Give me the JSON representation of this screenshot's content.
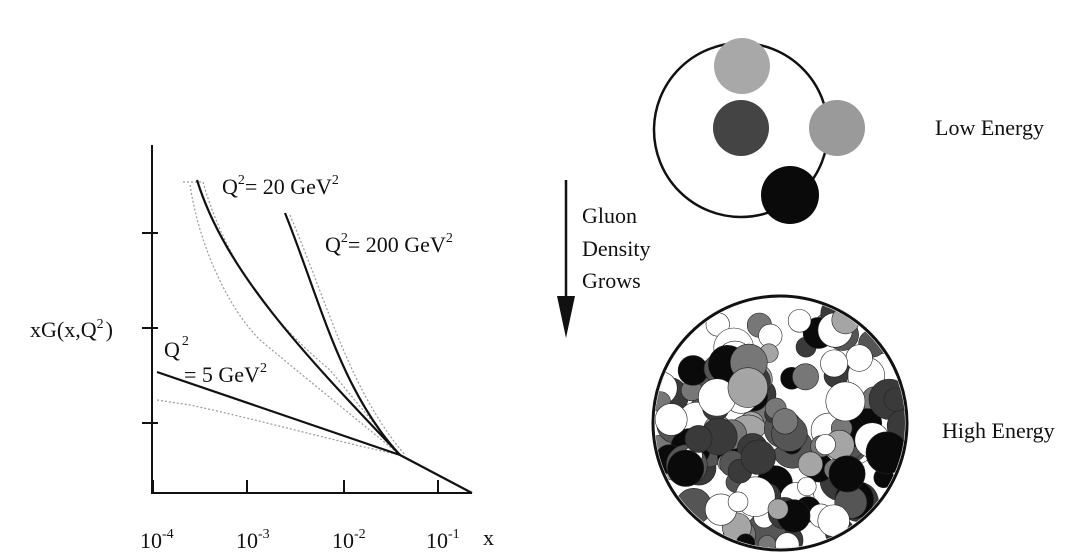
{
  "plot": {
    "y_axis_label": [
      "xG(x,Q",
      "2",
      ")"
    ],
    "x_axis_label": "x",
    "x_ticks": [
      [
        "10",
        "-4"
      ],
      [
        "10",
        "-3"
      ],
      [
        "10",
        "-2"
      ],
      [
        "10",
        "-1"
      ]
    ],
    "curve_labels": [
      [
        "Q",
        "2",
        "= 20 GeV",
        "2"
      ],
      [
        "Q",
        "2",
        "= 200 GeV",
        "2"
      ],
      [
        "Q",
        "2",
        "= 5 GeV",
        "2"
      ]
    ]
  },
  "arrow_label": [
    "Gluon",
    "Density",
    "Grows"
  ],
  "proton_states": [
    "Low Energy",
    "High Energy"
  ]
}
